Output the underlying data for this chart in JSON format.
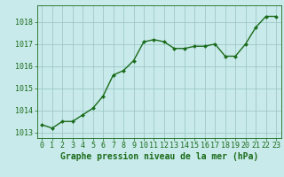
{
  "x": [
    0,
    1,
    2,
    3,
    4,
    5,
    6,
    7,
    8,
    9,
    10,
    11,
    12,
    13,
    14,
    15,
    16,
    17,
    18,
    19,
    20,
    21,
    22,
    23
  ],
  "y": [
    1013.35,
    1013.2,
    1013.5,
    1013.5,
    1013.8,
    1014.1,
    1014.65,
    1015.6,
    1015.8,
    1016.25,
    1017.1,
    1017.2,
    1017.1,
    1016.8,
    1016.8,
    1016.9,
    1016.9,
    1017.0,
    1016.45,
    1016.45,
    1017.0,
    1017.75,
    1018.25,
    1018.25
  ],
  "ylim": [
    1012.75,
    1018.75
  ],
  "yticks": [
    1013,
    1014,
    1015,
    1016,
    1017,
    1018
  ],
  "xticks": [
    0,
    1,
    2,
    3,
    4,
    5,
    6,
    7,
    8,
    9,
    10,
    11,
    12,
    13,
    14,
    15,
    16,
    17,
    18,
    19,
    20,
    21,
    22,
    23
  ],
  "line_color": "#1a6b1a",
  "marker_color": "#1a6b1a",
  "bg_color": "#c8eaea",
  "grid_color": "#a0c8c8",
  "xlabel": "Graphe pression niveau de la mer (hPa)",
  "xlabel_fontsize": 7,
  "tick_fontsize": 6,
  "marker": "D",
  "marker_size": 2.0,
  "line_width": 1.0
}
